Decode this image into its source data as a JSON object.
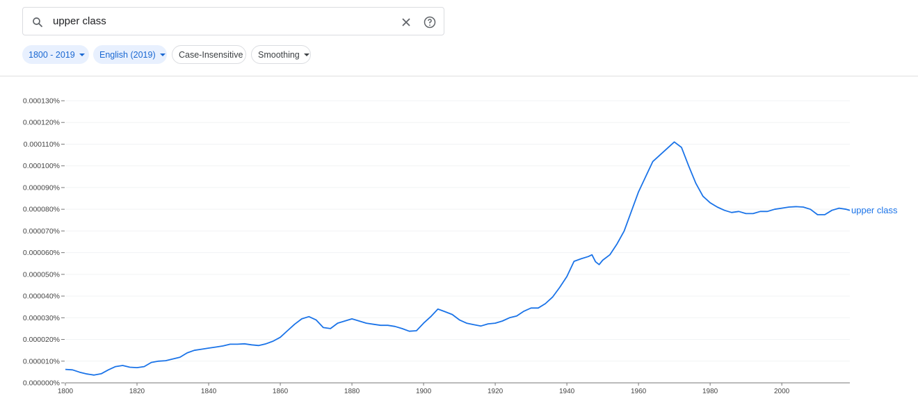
{
  "search": {
    "query": "upper class",
    "icons": {
      "search": "search-icon",
      "clear": "close-icon",
      "help": "help-icon"
    }
  },
  "filters": {
    "year_range": "1800 - 2019",
    "corpus": "English (2019)",
    "case": "Case-Insensitive",
    "smoothing": "Smoothing"
  },
  "colors": {
    "accent": "#1a73e8",
    "chip_bg": "#e8f0fe",
    "chip_text": "#1967d2"
  },
  "chart_data": {
    "type": "line",
    "xlim": [
      1800,
      2019
    ],
    "ylim": [
      0,
      0.00013
    ],
    "x_ticks": [
      "1800",
      "1820",
      "1840",
      "1860",
      "1880",
      "1900",
      "1920",
      "1940",
      "1960",
      "1980",
      "2000"
    ],
    "y_ticks": [
      "0.000000%",
      "0.000010%",
      "0.000020%",
      "0.000030%",
      "0.000040%",
      "0.000050%",
      "0.000060%",
      "0.000070%",
      "0.000080%",
      "0.000090%",
      "0.000100%",
      "0.000110%",
      "0.000120%",
      "0.000130%"
    ],
    "grid": true,
    "series": [
      {
        "name": "upper class",
        "color": "#1a73e8",
        "points": [
          [
            1800,
            6.2e-06
          ],
          [
            1802,
            6e-06
          ],
          [
            1804,
            4.9e-06
          ],
          [
            1806,
            4.1e-06
          ],
          [
            1808,
            3.6e-06
          ],
          [
            1810,
            4.2e-06
          ],
          [
            1812,
            6e-06
          ],
          [
            1814,
            7.5e-06
          ],
          [
            1816,
            8e-06
          ],
          [
            1818,
            7.2e-06
          ],
          [
            1820,
            7e-06
          ],
          [
            1822,
            7.5e-06
          ],
          [
            1824,
            9.4e-06
          ],
          [
            1826,
            1e-05
          ],
          [
            1828,
            1.02e-05
          ],
          [
            1830,
            1.1e-05
          ],
          [
            1832,
            1.18e-05
          ],
          [
            1834,
            1.38e-05
          ],
          [
            1836,
            1.5e-05
          ],
          [
            1838,
            1.55e-05
          ],
          [
            1840,
            1.6e-05
          ],
          [
            1842,
            1.65e-05
          ],
          [
            1844,
            1.7e-05
          ],
          [
            1846,
            1.78e-05
          ],
          [
            1848,
            1.78e-05
          ],
          [
            1850,
            1.8e-05
          ],
          [
            1852,
            1.75e-05
          ],
          [
            1854,
            1.72e-05
          ],
          [
            1856,
            1.8e-05
          ],
          [
            1858,
            1.92e-05
          ],
          [
            1860,
            2.1e-05
          ],
          [
            1862,
            2.4e-05
          ],
          [
            1864,
            2.7e-05
          ],
          [
            1866,
            2.95e-05
          ],
          [
            1868,
            3.05e-05
          ],
          [
            1870,
            2.9e-05
          ],
          [
            1872,
            2.55e-05
          ],
          [
            1874,
            2.5e-05
          ],
          [
            1876,
            2.75e-05
          ],
          [
            1878,
            2.85e-05
          ],
          [
            1880,
            2.95e-05
          ],
          [
            1882,
            2.85e-05
          ],
          [
            1884,
            2.75e-05
          ],
          [
            1886,
            2.7e-05
          ],
          [
            1888,
            2.65e-05
          ],
          [
            1890,
            2.65e-05
          ],
          [
            1892,
            2.6e-05
          ],
          [
            1894,
            2.5e-05
          ],
          [
            1896,
            2.38e-05
          ],
          [
            1898,
            2.4e-05
          ],
          [
            1900,
            2.75e-05
          ],
          [
            1902,
            3.05e-05
          ],
          [
            1904,
            3.4e-05
          ],
          [
            1906,
            3.28e-05
          ],
          [
            1908,
            3.15e-05
          ],
          [
            1910,
            2.9e-05
          ],
          [
            1912,
            2.75e-05
          ],
          [
            1914,
            2.68e-05
          ],
          [
            1916,
            2.62e-05
          ],
          [
            1918,
            2.72e-05
          ],
          [
            1920,
            2.75e-05
          ],
          [
            1922,
            2.85e-05
          ],
          [
            1924,
            3e-05
          ],
          [
            1926,
            3.08e-05
          ],
          [
            1928,
            3.3e-05
          ],
          [
            1930,
            3.45e-05
          ],
          [
            1932,
            3.45e-05
          ],
          [
            1934,
            3.65e-05
          ],
          [
            1936,
            3.95e-05
          ],
          [
            1938,
            4.4e-05
          ],
          [
            1940,
            4.9e-05
          ],
          [
            1942,
            5.6e-05
          ],
          [
            1944,
            5.72e-05
          ],
          [
            1946,
            5.82e-05
          ],
          [
            1947,
            5.9e-05
          ],
          [
            1948,
            5.58e-05
          ],
          [
            1949,
            5.45e-05
          ],
          [
            1950,
            5.65e-05
          ],
          [
            1952,
            5.9e-05
          ],
          [
            1954,
            6.4e-05
          ],
          [
            1956,
            7e-05
          ],
          [
            1958,
            7.9e-05
          ],
          [
            1960,
            8.8e-05
          ],
          [
            1962,
            9.5e-05
          ],
          [
            1964,
            0.000102
          ],
          [
            1966,
            0.000105
          ],
          [
            1968,
            0.000108
          ],
          [
            1970,
            0.000111
          ],
          [
            1972,
            0.0001085
          ],
          [
            1974,
            0.0001
          ],
          [
            1976,
            9.2e-05
          ],
          [
            1978,
            8.6e-05
          ],
          [
            1980,
            8.3e-05
          ],
          [
            1982,
            8.1e-05
          ],
          [
            1984,
            7.95e-05
          ],
          [
            1986,
            7.85e-05
          ],
          [
            1988,
            7.9e-05
          ],
          [
            1990,
            7.8e-05
          ],
          [
            1992,
            7.8e-05
          ],
          [
            1994,
            7.9e-05
          ],
          [
            1996,
            7.9e-05
          ],
          [
            1998,
            8e-05
          ],
          [
            2000,
            8.05e-05
          ],
          [
            2002,
            8.1e-05
          ],
          [
            2004,
            8.12e-05
          ],
          [
            2006,
            8.1e-05
          ],
          [
            2008,
            8e-05
          ],
          [
            2010,
            7.75e-05
          ],
          [
            2012,
            7.75e-05
          ],
          [
            2014,
            7.95e-05
          ],
          [
            2016,
            8.05e-05
          ],
          [
            2018,
            8e-05
          ],
          [
            2019,
            7.95e-05
          ]
        ]
      }
    ]
  }
}
